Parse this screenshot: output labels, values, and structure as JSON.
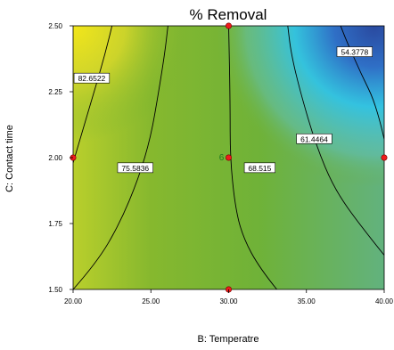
{
  "chart_data": {
    "type": "contour",
    "title": "% Removal",
    "xlabel": "B: Temperatre",
    "ylabel": "C: Contact time",
    "xlim": [
      20,
      40
    ],
    "ylim": [
      1.5,
      2.5
    ],
    "x_ticks": [
      "20.00",
      "25.00",
      "30.00",
      "35.00",
      "40.00"
    ],
    "y_ticks": [
      "1.50",
      "1.75",
      "2.00",
      "2.25",
      "2.50"
    ],
    "contour_levels": [
      {
        "value": "82.6522",
        "label_at": [
          21.2,
          2.3
        ]
      },
      {
        "value": "75.5836",
        "label_at": [
          24.0,
          1.96
        ]
      },
      {
        "value": "68.515",
        "label_at": [
          32.0,
          1.96
        ]
      },
      {
        "value": "61.4464",
        "label_at": [
          35.5,
          2.07
        ]
      },
      {
        "value": "54.3778",
        "label_at": [
          38.1,
          2.4
        ]
      }
    ],
    "design_points": [
      {
        "x": 20,
        "y": 2.0
      },
      {
        "x": 30,
        "y": 2.5
      },
      {
        "x": 30,
        "y": 2.0,
        "label": "6"
      },
      {
        "x": 30,
        "y": 1.5
      },
      {
        "x": 40,
        "y": 2.0
      }
    ],
    "colors": {
      "high": "#f2e61a",
      "mid": "#72b232",
      "low_cyan": "#2ec4ec",
      "low_blue": "#2a4aa0",
      "point": "#ee1c1c"
    }
  }
}
